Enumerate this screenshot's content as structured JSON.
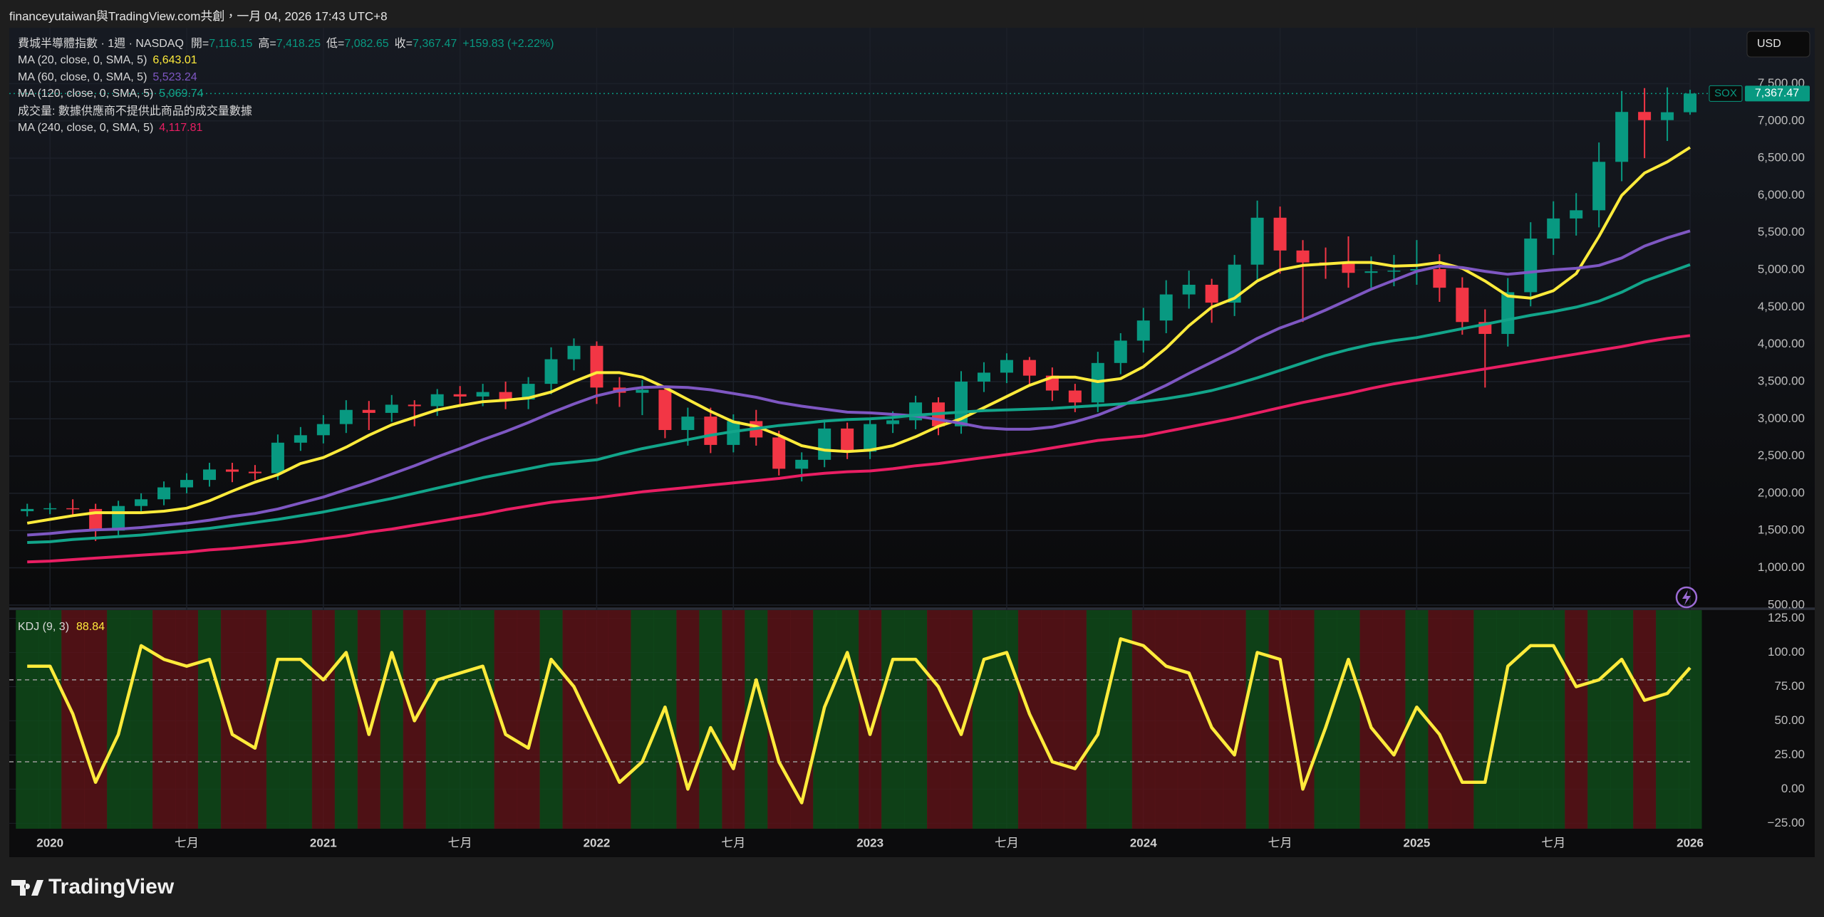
{
  "header": {
    "title": "financeyutaiwan與TradingView.com共創，一月 04, 2026 17:43 UTC+8"
  },
  "currency": "USD",
  "footer": {
    "logo": "TradingView"
  },
  "chart_data": [
    {
      "type": "candlestick",
      "title": "費城半導體指數 · 1週 · NASDAQ",
      "ohlc_legend": [
        {
          "label": "開=",
          "value": "7,116.15"
        },
        {
          "label": "高=",
          "value": "7,418.25"
        },
        {
          "label": "低=",
          "value": "7,082.65"
        },
        {
          "label": "收=",
          "value": "7,367.47"
        }
      ],
      "change": "+159.83 (+2.22%)",
      "volume_note": "成交量: 數據供應商不提供此商品的成交量數據",
      "symbol": "SOX",
      "last_label": "7,367.47",
      "up_color": "#089981",
      "down_color": "#f23645",
      "grid": true,
      "x": [
        "2019-12",
        "2020-01",
        "2020-02",
        "2020-03",
        "2020-04",
        "2020-05",
        "2020-06",
        "2020-07",
        "2020-08",
        "2020-09",
        "2020-10",
        "2020-11",
        "2020-12",
        "2021-01",
        "2021-02",
        "2021-03",
        "2021-04",
        "2021-05",
        "2021-06",
        "2021-07",
        "2021-08",
        "2021-09",
        "2021-10",
        "2021-11",
        "2021-12",
        "2022-01",
        "2022-02",
        "2022-03",
        "2022-04",
        "2022-05",
        "2022-06",
        "2022-07",
        "2022-08",
        "2022-09",
        "2022-10",
        "2022-11",
        "2022-12",
        "2023-01",
        "2023-02",
        "2023-03",
        "2023-04",
        "2023-05",
        "2023-06",
        "2023-07",
        "2023-08",
        "2023-09",
        "2023-10",
        "2023-11",
        "2023-12",
        "2024-01",
        "2024-02",
        "2024-03",
        "2024-04",
        "2024-05",
        "2024-06",
        "2024-07",
        "2024-08",
        "2024-09",
        "2024-10",
        "2024-11",
        "2024-12",
        "2025-01",
        "2025-02",
        "2025-03",
        "2025-04",
        "2025-05",
        "2025-06",
        "2025-07",
        "2025-08",
        "2025-09",
        "2025-10",
        "2025-11",
        "2025-12",
        "2026-01"
      ],
      "open": [
        1760,
        1790,
        1800,
        1790,
        1500,
        1830,
        1920,
        2080,
        2180,
        2320,
        2290,
        2270,
        2680,
        2780,
        2930,
        3120,
        3080,
        3190,
        3170,
        3330,
        3300,
        3360,
        3260,
        3470,
        3800,
        3980,
        3420,
        3350,
        3390,
        2850,
        3030,
        2650,
        2970,
        2750,
        2330,
        2450,
        2870,
        2560,
        2930,
        2980,
        3220,
        2900,
        3500,
        3620,
        3790,
        3580,
        3380,
        3220,
        3750,
        4050,
        4320,
        4670,
        4800,
        4560,
        5070,
        5700,
        5260,
        5100,
        5090,
        4960,
        4980,
        4990,
        5010,
        4760,
        4300,
        4140,
        4700,
        5420,
        5690,
        5800,
        6450,
        7120,
        7010,
        7116.15
      ],
      "high": [
        1860,
        1870,
        1920,
        1860,
        1900,
        2000,
        2160,
        2270,
        2410,
        2410,
        2380,
        2790,
        2890,
        3050,
        3250,
        3240,
        3320,
        3250,
        3400,
        3440,
        3470,
        3500,
        3560,
        3960,
        4080,
        4040,
        3560,
        3520,
        3440,
        3150,
        3150,
        3060,
        3120,
        2840,
        2550,
        2990,
        2950,
        3000,
        3100,
        3310,
        3290,
        3640,
        3760,
        3880,
        3830,
        3690,
        3470,
        3900,
        4150,
        4490,
        4860,
        4990,
        4880,
        5200,
        5930,
        5850,
        5400,
        5300,
        5450,
        5180,
        5200,
        5400,
        5210,
        4900,
        4470,
        4890,
        5640,
        5920,
        6030,
        6710,
        7400,
        7440,
        7450,
        7418.25
      ],
      "low": [
        1690,
        1720,
        1700,
        1360,
        1440,
        1760,
        1840,
        2000,
        2090,
        2150,
        2180,
        2180,
        2570,
        2670,
        2810,
        2850,
        2960,
        2900,
        3040,
        3170,
        3170,
        3130,
        3130,
        3330,
        3650,
        3200,
        3160,
        3050,
        2740,
        2640,
        2540,
        2550,
        2640,
        2240,
        2160,
        2350,
        2460,
        2460,
        2810,
        2860,
        2780,
        2800,
        3360,
        3480,
        3440,
        3240,
        3090,
        3090,
        3600,
        3890,
        4150,
        4480,
        4290,
        4380,
        4870,
        4950,
        4300,
        4880,
        4760,
        4760,
        4780,
        4800,
        4570,
        4130,
        3420,
        3970,
        4510,
        5200,
        5460,
        5570,
        6190,
        6500,
        6730,
        7082.65
      ],
      "close": [
        1790,
        1800,
        1790,
        1500,
        1830,
        1920,
        2080,
        2180,
        2320,
        2290,
        2270,
        2680,
        2780,
        2930,
        3120,
        3080,
        3190,
        3170,
        3330,
        3300,
        3360,
        3260,
        3470,
        3800,
        3980,
        3420,
        3350,
        3390,
        2850,
        3030,
        2650,
        2970,
        2750,
        2330,
        2450,
        2870,
        2560,
        2930,
        2980,
        3220,
        2900,
        3500,
        3620,
        3790,
        3580,
        3380,
        3220,
        3750,
        4050,
        4320,
        4670,
        4800,
        4560,
        5070,
        5700,
        5260,
        5100,
        5090,
        4960,
        4980,
        4990,
        5010,
        4760,
        4300,
        4140,
        4700,
        5420,
        5690,
        5800,
        6450,
        7120,
        7010,
        7116,
        7367.47
      ],
      "series": [
        {
          "name": "MA (20, close, 0, SMA, 5)",
          "color": "#ffeb3b",
          "value_label": "6,643.01",
          "values": [
            1600,
            1650,
            1700,
            1740,
            1740,
            1740,
            1760,
            1800,
            1900,
            2030,
            2150,
            2250,
            2400,
            2480,
            2620,
            2780,
            2920,
            3020,
            3120,
            3180,
            3230,
            3250,
            3280,
            3360,
            3500,
            3620,
            3620,
            3560,
            3420,
            3260,
            3100,
            2960,
            2900,
            2780,
            2640,
            2580,
            2560,
            2580,
            2640,
            2760,
            2900,
            3000,
            3150,
            3300,
            3450,
            3560,
            3560,
            3500,
            3540,
            3700,
            3950,
            4250,
            4500,
            4620,
            4850,
            5000,
            5060,
            5080,
            5100,
            5100,
            5050,
            5060,
            5100,
            5020,
            4850,
            4650,
            4620,
            4720,
            4950,
            5450,
            6000,
            6300,
            6450,
            6643.01
          ]
        },
        {
          "name": "MA (60, close, 0, SMA, 5)",
          "color": "#7e57c2",
          "value_label": "5,523.24",
          "values": [
            1440,
            1460,
            1490,
            1510,
            1520,
            1540,
            1570,
            1600,
            1640,
            1690,
            1730,
            1790,
            1870,
            1950,
            2050,
            2150,
            2260,
            2370,
            2490,
            2600,
            2720,
            2830,
            2950,
            3080,
            3200,
            3310,
            3380,
            3420,
            3430,
            3420,
            3390,
            3340,
            3290,
            3220,
            3170,
            3130,
            3090,
            3080,
            3060,
            3040,
            2990,
            2940,
            2880,
            2860,
            2860,
            2890,
            2960,
            3050,
            3170,
            3310,
            3450,
            3610,
            3760,
            3910,
            4080,
            4220,
            4330,
            4460,
            4600,
            4740,
            4860,
            4980,
            5050,
            5030,
            4980,
            4940,
            4970,
            5000,
            5020,
            5060,
            5160,
            5320,
            5430,
            5523.24
          ]
        },
        {
          "name": "MA (120, close, 0, SMA, 5)",
          "color": "#12a58a",
          "value_label": "5,069.74",
          "values": [
            1340,
            1350,
            1380,
            1400,
            1420,
            1440,
            1470,
            1500,
            1530,
            1570,
            1610,
            1650,
            1700,
            1750,
            1810,
            1870,
            1930,
            2000,
            2070,
            2140,
            2210,
            2270,
            2330,
            2390,
            2420,
            2450,
            2530,
            2600,
            2660,
            2720,
            2780,
            2830,
            2870,
            2910,
            2940,
            2970,
            2990,
            3000,
            3020,
            3050,
            3070,
            3090,
            3110,
            3120,
            3130,
            3140,
            3160,
            3180,
            3200,
            3230,
            3270,
            3320,
            3380,
            3460,
            3550,
            3650,
            3750,
            3850,
            3930,
            4000,
            4050,
            4090,
            4150,
            4210,
            4270,
            4330,
            4390,
            4440,
            4500,
            4580,
            4700,
            4850,
            4960,
            5069.74
          ]
        },
        {
          "name": "MA (240, close, 0, SMA, 5)",
          "color": "#e91e63",
          "value_label": "4,117.81",
          "values": [
            1080,
            1090,
            1110,
            1130,
            1150,
            1170,
            1190,
            1210,
            1240,
            1260,
            1290,
            1320,
            1350,
            1390,
            1430,
            1480,
            1520,
            1570,
            1620,
            1670,
            1720,
            1780,
            1830,
            1880,
            1910,
            1940,
            1980,
            2020,
            2050,
            2080,
            2110,
            2140,
            2170,
            2200,
            2240,
            2270,
            2290,
            2300,
            2330,
            2370,
            2400,
            2440,
            2480,
            2520,
            2560,
            2610,
            2660,
            2710,
            2740,
            2770,
            2830,
            2890,
            2950,
            3010,
            3080,
            3150,
            3220,
            3280,
            3340,
            3410,
            3470,
            3520,
            3570,
            3620,
            3670,
            3720,
            3770,
            3820,
            3870,
            3920,
            3970,
            4030,
            4080,
            4117.81
          ]
        }
      ],
      "ylim": [
        470,
        8250
      ],
      "yticks": [
        {
          "value": 500,
          "label": "500.00"
        },
        {
          "value": 1000,
          "label": "1,000.00"
        },
        {
          "value": 1500,
          "label": "1,500.00"
        },
        {
          "value": 2000,
          "label": "2,000.00"
        },
        {
          "value": 2500,
          "label": "2,500.00"
        },
        {
          "value": 3000,
          "label": "3,000.00"
        },
        {
          "value": 3500,
          "label": "3,500.00"
        },
        {
          "value": 4000,
          "label": "4,000.00"
        },
        {
          "value": 4500,
          "label": "4,500.00"
        },
        {
          "value": 5000,
          "label": "5,000.00"
        },
        {
          "value": 5500,
          "label": "5,500.00"
        },
        {
          "value": 6000,
          "label": "6,000.00"
        },
        {
          "value": 6500,
          "label": "6,500.00"
        },
        {
          "value": 7000,
          "label": "7,000.00"
        },
        {
          "value": 7500,
          "label": "7,500.00"
        }
      ],
      "xticks": [
        {
          "value": "2020-01",
          "label": "2020"
        },
        {
          "value": "2020-07",
          "label": "七月"
        },
        {
          "value": "2021-01",
          "label": "2021"
        },
        {
          "value": "2021-07",
          "label": "七月"
        },
        {
          "value": "2022-01",
          "label": "2022"
        },
        {
          "value": "2022-07",
          "label": "七月"
        },
        {
          "value": "2023-01",
          "label": "2023"
        },
        {
          "value": "2023-07",
          "label": "七月"
        },
        {
          "value": "2024-01",
          "label": "2024"
        },
        {
          "value": "2024-07",
          "label": "七月"
        },
        {
          "value": "2025-01",
          "label": "2025"
        },
        {
          "value": "2025-07",
          "label": "七月"
        },
        {
          "value": "2026-01",
          "label": "2026"
        }
      ]
    },
    {
      "type": "line",
      "up_color": "#0f4a1a",
      "down_color": "#5a1318",
      "grid": true,
      "x": [
        "2019-12",
        "2020-01",
        "2020-02",
        "2020-03",
        "2020-04",
        "2020-05",
        "2020-06",
        "2020-07",
        "2020-08",
        "2020-09",
        "2020-10",
        "2020-11",
        "2020-12",
        "2021-01",
        "2021-02",
        "2021-03",
        "2021-04",
        "2021-05",
        "2021-06",
        "2021-07",
        "2021-08",
        "2021-09",
        "2021-10",
        "2021-11",
        "2021-12",
        "2022-01",
        "2022-02",
        "2022-03",
        "2022-04",
        "2022-05",
        "2022-06",
        "2022-07",
        "2022-08",
        "2022-09",
        "2022-10",
        "2022-11",
        "2022-12",
        "2023-01",
        "2023-02",
        "2023-03",
        "2023-04",
        "2023-05",
        "2023-06",
        "2023-07",
        "2023-08",
        "2023-09",
        "2023-10",
        "2023-11",
        "2023-12",
        "2024-01",
        "2024-02",
        "2024-03",
        "2024-04",
        "2024-05",
        "2024-06",
        "2024-07",
        "2024-08",
        "2024-09",
        "2024-10",
        "2024-11",
        "2024-12",
        "2025-01",
        "2025-02",
        "2025-03",
        "2025-04",
        "2025-05",
        "2025-06",
        "2025-07",
        "2025-08",
        "2025-09",
        "2025-10",
        "2025-11",
        "2025-12",
        "2026-01"
      ],
      "series": [
        {
          "name": "KDJ (9, 3)",
          "color": "#ffeb3b",
          "value_label": "88.84",
          "values": [
            90,
            90,
            55,
            5,
            40,
            105,
            95,
            90,
            95,
            40,
            30,
            95,
            95,
            80,
            100,
            40,
            100,
            50,
            80,
            85,
            90,
            40,
            30,
            95,
            75,
            40,
            5,
            20,
            60,
            0,
            45,
            15,
            80,
            20,
            -10,
            60,
            100,
            40,
            95,
            95,
            75,
            40,
            95,
            100,
            55,
            20,
            15,
            40,
            110,
            105,
            90,
            85,
            45,
            25,
            100,
            95,
            0,
            45,
            95,
            45,
            25,
            60,
            40,
            5,
            5,
            90,
            105,
            105,
            75,
            80,
            95,
            65,
            70,
            88.84
          ]
        }
      ],
      "levels": [
        80,
        20
      ],
      "ylim": [
        -29,
        131
      ],
      "yticks": [
        {
          "value": 125,
          "label": "125.00"
        },
        {
          "value": 100,
          "label": "100.00"
        },
        {
          "value": 75,
          "label": "75.00"
        },
        {
          "value": 50,
          "label": "50.00"
        },
        {
          "value": 25,
          "label": "25.00"
        },
        {
          "value": 0,
          "label": "0.00"
        },
        {
          "value": -25,
          "label": "−25.00"
        }
      ]
    }
  ]
}
